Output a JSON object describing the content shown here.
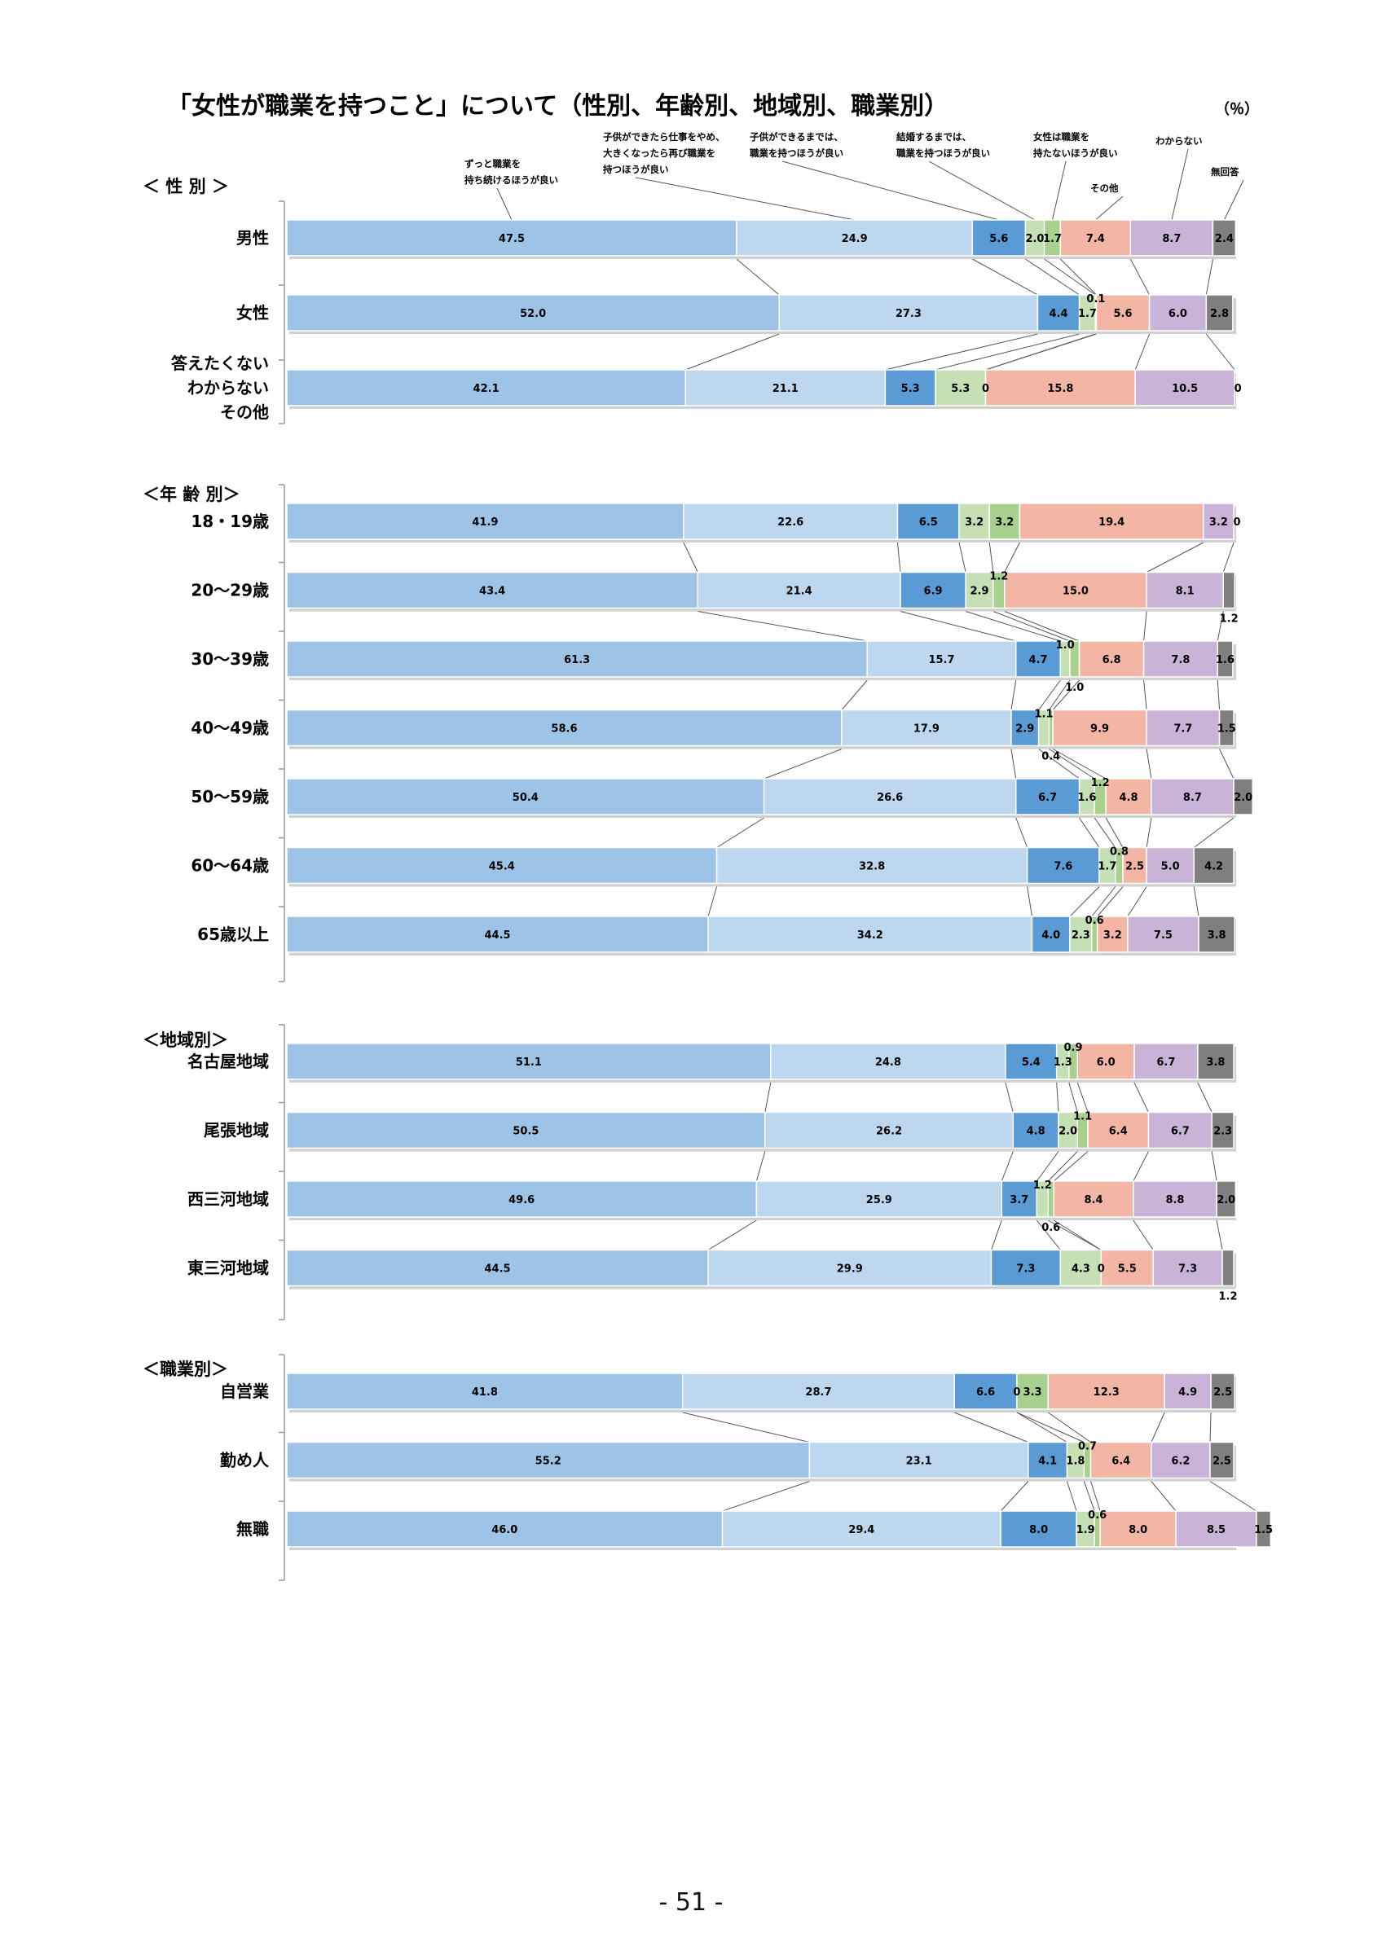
{
  "title": "「女性が職業を持つこと」について（性別、年齢別、地域別、職業別）",
  "unit": "（％）",
  "page_number": "- 51 -",
  "colors": [
    "#9dc3e6",
    "#bdd7ee",
    "#5b9bd5",
    "#c5e0b4",
    "#a9d18e",
    "#f4b6a4",
    "#c9b4d8",
    "#7f7f7f"
  ],
  "chart_data": {
    "type": "bar",
    "orientation": "horizontal",
    "stacked": "100%",
    "xlim": [
      0,
      100
    ],
    "legend": [
      "ずっと職業を持ち続けるほうが良い",
      "子供ができたら仕事をやめ、大きくなったら再び職業を持つほうが良い",
      "子供ができるまでは、職業を持つほうが良い",
      "結婚するまでは、職業を持つほうが良い",
      "女性は職業を持たないほうが良い",
      "その他",
      "わからない",
      "無回答"
    ],
    "groups": [
      {
        "label": "＜ 性 別 ＞",
        "rows": [
          {
            "label": "男性",
            "values": [
              47.5,
              24.9,
              5.6,
              2.0,
              1.7,
              7.4,
              8.7,
              2.4
            ],
            "labels": [
              "47.5",
              "24.9",
              "5.6",
              "2.0",
              "1.7",
              "7.4",
              "8.7",
              "2.4"
            ]
          },
          {
            "label": "女性",
            "values": [
              52.0,
              27.3,
              4.4,
              1.7,
              0.1,
              5.6,
              6.0,
              2.8
            ],
            "labels": [
              "52.0",
              "27.3",
              "4.4",
              "1.7",
              "0.1",
              "5.6",
              "6.0",
              "2.8"
            ]
          },
          {
            "label": "答えたくない\nわからない\nその他",
            "values": [
              42.1,
              21.1,
              5.3,
              5.3,
              0,
              15.8,
              10.5,
              0
            ],
            "labels": [
              "42.1",
              "21.1",
              "5.3",
              "5.3",
              "0",
              "15.8",
              "10.5",
              "0"
            ]
          }
        ]
      },
      {
        "label": "＜年 齢 別＞",
        "rows": [
          {
            "label": "18・19歳",
            "values": [
              41.9,
              22.6,
              6.5,
              3.2,
              3.2,
              19.4,
              3.2,
              0
            ],
            "labels": [
              "41.9",
              "22.6",
              "6.5",
              "3.2",
              "3.2",
              "19.4",
              "3.2",
              "0"
            ]
          },
          {
            "label": "20～29歳",
            "values": [
              43.4,
              21.4,
              6.9,
              2.9,
              1.2,
              15.0,
              8.1,
              1.2
            ],
            "labels": [
              "43.4",
              "21.4",
              "6.9",
              "2.9",
              "1.2",
              "15.0",
              "8.1",
              "1.2"
            ]
          },
          {
            "label": "30～39歳",
            "values": [
              61.3,
              15.7,
              4.7,
              1.0,
              1.0,
              6.8,
              7.8,
              1.6
            ],
            "labels": [
              "61.3",
              "15.7",
              "4.7",
              "1.0",
              "1.0",
              "6.8",
              "7.8",
              "1.6"
            ]
          },
          {
            "label": "40～49歳",
            "values": [
              58.6,
              17.9,
              2.9,
              1.1,
              0.4,
              9.9,
              7.7,
              1.5
            ],
            "labels": [
              "58.6",
              "17.9",
              "2.9",
              "1.1",
              "0.4",
              "9.9",
              "7.7",
              "1.5"
            ]
          },
          {
            "label": "50～59歳",
            "values": [
              50.4,
              26.6,
              6.7,
              1.6,
              1.2,
              4.8,
              8.7,
              2.0
            ],
            "labels": [
              "50.4",
              "26.6",
              "6.7",
              "1.6",
              "1.2",
              "4.8",
              "8.7",
              "2.0"
            ]
          },
          {
            "label": "60～64歳",
            "values": [
              45.4,
              32.8,
              7.6,
              1.7,
              0.8,
              2.5,
              5.0,
              4.2
            ],
            "labels": [
              "45.4",
              "32.8",
              "7.6",
              "1.7",
              "0.8",
              "2.5",
              "5.0",
              "4.2"
            ]
          },
          {
            "label": "65歳以上",
            "values": [
              44.5,
              34.2,
              4.0,
              2.3,
              0.6,
              3.2,
              7.5,
              3.8
            ],
            "labels": [
              "44.5",
              "34.2",
              "4.0",
              "2.3",
              "0.6",
              "3.2",
              "7.5",
              "3.8"
            ]
          }
        ]
      },
      {
        "label": "＜地域別＞",
        "rows": [
          {
            "label": "名古屋地域",
            "values": [
              51.1,
              24.8,
              5.4,
              1.3,
              0.9,
              6.0,
              6.7,
              3.8
            ],
            "labels": [
              "51.1",
              "24.8",
              "5.4",
              "1.3",
              "0.9",
              "6.0",
              "6.7",
              "3.8"
            ]
          },
          {
            "label": "尾張地域",
            "values": [
              50.5,
              26.2,
              4.8,
              2.0,
              1.1,
              6.4,
              6.7,
              2.3
            ],
            "labels": [
              "50.5",
              "26.2",
              "4.8",
              "2.0",
              "1.1",
              "6.4",
              "6.7",
              "2.3"
            ]
          },
          {
            "label": "西三河地域",
            "values": [
              49.6,
              25.9,
              3.7,
              1.2,
              0.6,
              8.4,
              8.8,
              2.0
            ],
            "labels": [
              "49.6",
              "25.9",
              "3.7",
              "1.2",
              "0.6",
              "8.4",
              "8.8",
              "2.0"
            ]
          },
          {
            "label": "東三河地域",
            "values": [
              44.5,
              29.9,
              7.3,
              4.3,
              0,
              5.5,
              7.3,
              1.2
            ],
            "labels": [
              "44.5",
              "29.9",
              "7.3",
              "4.3",
              "0",
              "5.5",
              "7.3",
              "1.2"
            ]
          }
        ]
      },
      {
        "label": "＜職業別＞",
        "rows": [
          {
            "label": "自営業",
            "values": [
              41.8,
              28.7,
              6.6,
              0,
              3.3,
              12.3,
              4.9,
              2.5
            ],
            "labels": [
              "41.8",
              "28.7",
              "6.6",
              "0",
              "3.3",
              "12.3",
              "4.9",
              "2.5"
            ]
          },
          {
            "label": "勤め人",
            "values": [
              55.2,
              23.1,
              4.1,
              1.8,
              0.7,
              6.4,
              6.2,
              2.5
            ],
            "labels": [
              "55.2",
              "23.1",
              "4.1",
              "1.8",
              "0.7",
              "6.4",
              "6.2",
              "2.5"
            ]
          },
          {
            "label": "無職",
            "values": [
              46.0,
              29.4,
              8.0,
              1.9,
              0.6,
              8.0,
              8.5,
              1.5
            ],
            "labels": [
              "46.0",
              "29.4",
              "8.0",
              "1.9",
              "0.6",
              "8.0",
              "8.5",
              "1.5"
            ]
          }
        ]
      }
    ]
  }
}
